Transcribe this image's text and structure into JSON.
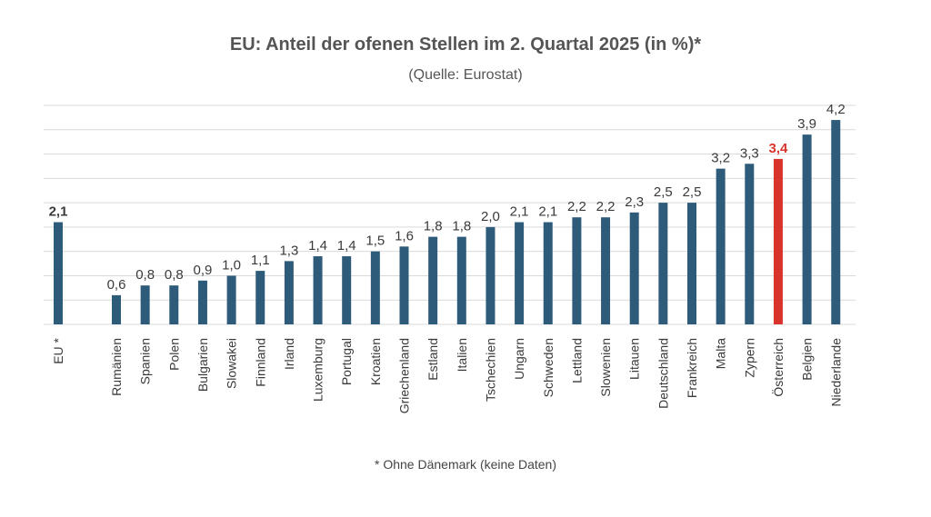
{
  "chart_data": {
    "type": "bar",
    "title": "EU: Anteil der ofenen Stellen im 2. Quartal 2025 (in %)*",
    "subtitle": "(Quelle: Eurostat)",
    "footnote": "* Ohne Dänemark (keine Daten)",
    "categories": [
      "EU *",
      "Rumänien",
      "Spanien",
      "Polen",
      "Bulgarien",
      "Slowakei",
      "Finnland",
      "Irland",
      "Luxemburg",
      "Portugal",
      "Kroatien",
      "Griechenland",
      "Estland",
      "Italien",
      "Tschechien",
      "Ungarn",
      "Schweden",
      "Lettland",
      "Slowenien",
      "Litauen",
      "Deutschland",
      "Frankreich",
      "Malta",
      "Zypern",
      "Österreich",
      "Belgien",
      "Niederlande"
    ],
    "values": [
      2.1,
      0.6,
      0.8,
      0.8,
      0.9,
      1.0,
      1.1,
      1.3,
      1.4,
      1.4,
      1.5,
      1.6,
      1.8,
      1.8,
      2.0,
      2.1,
      2.1,
      2.2,
      2.2,
      2.3,
      2.5,
      2.5,
      3.2,
      3.3,
      3.4,
      3.9,
      4.2
    ],
    "labels": [
      "2,1",
      "0,6",
      "0,8",
      "0,8",
      "0,9",
      "1,0",
      "1,1",
      "1,3",
      "1,4",
      "1,4",
      "1,5",
      "1,6",
      "1,8",
      "1,8",
      "2,0",
      "2,1",
      "2,1",
      "2,2",
      "2,2",
      "2,3",
      "2,5",
      "2,5",
      "3,2",
      "3,3",
      "3,4",
      "3,9",
      "4,2"
    ],
    "highlight": [
      "EU *",
      "Österreich"
    ],
    "ylim": [
      0,
      4.5
    ],
    "grid": true,
    "colors": {
      "bar": "#2e5b7a",
      "highlight": "#d9342b",
      "grid": "#d9d9d9",
      "label": "#3a3a3a"
    }
  }
}
